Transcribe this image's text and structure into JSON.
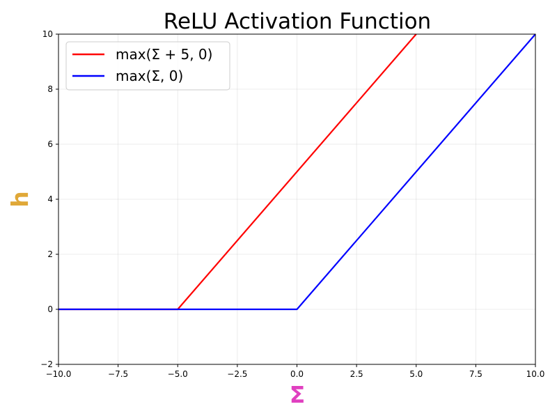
{
  "chart_data": {
    "type": "line",
    "title": "ReLU Activation Function",
    "xlabel": "Σ",
    "ylabel": "h",
    "xlim": [
      -10,
      10
    ],
    "ylim": [
      -2,
      10
    ],
    "grid": true,
    "legend_position": "top-left",
    "x_ticks": [
      -10.0,
      -7.5,
      -5.0,
      -2.5,
      0.0,
      2.5,
      5.0,
      7.5,
      10.0
    ],
    "x_tick_labels": [
      "−10.0",
      "−7.5",
      "−5.0",
      "−2.5",
      "0.0",
      "2.5",
      "5.0",
      "7.5",
      "10.0"
    ],
    "y_ticks": [
      -2,
      0,
      2,
      4,
      6,
      8,
      10
    ],
    "y_tick_labels": [
      "−2",
      "0",
      "2",
      "4",
      "6",
      "8",
      "10"
    ],
    "colors": {
      "xlabel": "#e040c0",
      "ylabel": "#e0a838"
    },
    "series": [
      {
        "name": "max(Σ + 5, 0)",
        "color": "#ff0000",
        "x": [
          -10,
          -5,
          5
        ],
        "y": [
          0,
          0,
          10
        ]
      },
      {
        "name": "max(Σ, 0)",
        "color": "#0000ff",
        "x": [
          -10,
          0,
          10
        ],
        "y": [
          0,
          0,
          10
        ]
      }
    ]
  }
}
